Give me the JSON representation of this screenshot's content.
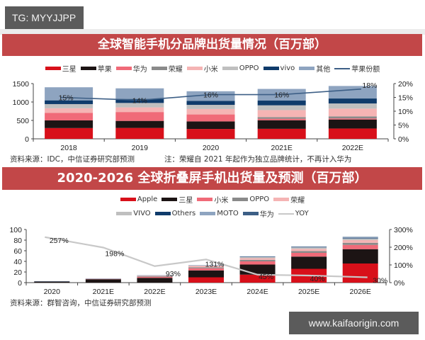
{
  "badge": {
    "text": "TG: MYYJJPP"
  },
  "watermark": {
    "text": "www.kaifaorigin.com"
  },
  "colors": {
    "banner": "#c24748",
    "samsung": "#d8101a",
    "apple": "#1c1414",
    "huawei": "#f06a78",
    "honor": "#8a8a8a",
    "xiaomi": "#f5b4b4",
    "oppo": "#bfbfbf",
    "vivo": "#0f3b6b",
    "others": "#8ea4c0",
    "share_line": "#3d5f86",
    "yoy_line": "#c8c8c8"
  },
  "chart_data": [
    {
      "type": "bar",
      "stacked": true,
      "title": "全球智能手机分品牌出货量情况（百万部）",
      "categories": [
        "2018",
        "2019",
        "2020",
        "2021E",
        "2022E"
      ],
      "ylabel": "百万部",
      "ylim": [
        0,
        1500
      ],
      "yticks": [
        0,
        500,
        1000,
        1500
      ],
      "y2lim": [
        0,
        20
      ],
      "y2ticks": [
        "0%",
        "5%",
        "10%",
        "15%",
        "20%"
      ],
      "series": [
        {
          "name": "三星",
          "color": "#d8101a",
          "values": [
            292,
            296,
            267,
            272,
            280
          ]
        },
        {
          "name": "苹果",
          "color": "#1c1414",
          "values": [
            209,
            191,
            206,
            233,
            245
          ]
        },
        {
          "name": "华为",
          "color": "#f06a78",
          "values": [
            206,
            241,
            189,
            40,
            30
          ]
        },
        {
          "name": "荣耀",
          "color": "#8a8a8a",
          "values": [
            0,
            0,
            0,
            45,
            55
          ]
        },
        {
          "name": "小米",
          "color": "#f5b4b4",
          "values": [
            123,
            126,
            148,
            190,
            210
          ]
        },
        {
          "name": "OPPO",
          "color": "#bfbfbf",
          "values": [
            113,
            120,
            112,
            130,
            140
          ]
        },
        {
          "name": "vivo",
          "color": "#0f3b6b",
          "values": [
            102,
            110,
            110,
            128,
            135
          ]
        },
        {
          "name": "其他",
          "color": "#8ea4c0",
          "values": [
            355,
            287,
            260,
            317,
            340
          ]
        }
      ],
      "line": {
        "name": "苹果份额",
        "axis": "right",
        "values": [
          15,
          14,
          16,
          16,
          18
        ],
        "labels": [
          "15%",
          "14%",
          "16%",
          "16%",
          "18%"
        ]
      },
      "legend": [
        "三星",
        "苹果",
        "华为",
        "荣耀",
        "小米",
        "OPPO",
        "vivo",
        "其他",
        "苹果份额"
      ],
      "source": "资料来源：IDC，中信证券研究部预测",
      "note": "注：荣耀自 2021 年起作为独立品牌统计，不再计入华为"
    },
    {
      "type": "bar",
      "stacked": true,
      "title": "2020-2026 全球折叠屏手机出货量及预测（百万部）",
      "categories": [
        "2020",
        "2021E",
        "2022E",
        "2023E",
        "2024E",
        "2025E",
        "2026E"
      ],
      "ylabel": "百万部",
      "ylim": [
        0,
        100
      ],
      "yticks": [
        0,
        20,
        40,
        60,
        80,
        100
      ],
      "y2lim": [
        0,
        300
      ],
      "y2ticks": [
        "0%",
        "100%",
        "200%",
        "300%"
      ],
      "series": [
        {
          "name": "Apple",
          "color": "#d8101a",
          "values": [
            0,
            0,
            0,
            10,
            15,
            26,
            36
          ]
        },
        {
          "name": "三星",
          "color": "#1c1414",
          "values": [
            2.5,
            6.5,
            9,
            13,
            19,
            23,
            27
          ]
        },
        {
          "name": "小米",
          "color": "#f06a78",
          "values": [
            0,
            0.5,
            2,
            4,
            6,
            7,
            8
          ]
        },
        {
          "name": "OPPO",
          "color": "#8a8a8a",
          "values": [
            0,
            0.2,
            1,
            2,
            3,
            3.5,
            4
          ]
        },
        {
          "name": "荣耀",
          "color": "#f5b4b4",
          "values": [
            0,
            0.2,
            1,
            2.5,
            3,
            4,
            5
          ]
        },
        {
          "name": "VIVO",
          "color": "#bfbfbf",
          "values": [
            0,
            0,
            0.5,
            1,
            2,
            2.5,
            3
          ]
        },
        {
          "name": "Others",
          "color": "#0f3b6b",
          "values": [
            0,
            0,
            0,
            0,
            0,
            0,
            0.5
          ]
        },
        {
          "name": "MOTO",
          "color": "#8ea4c0",
          "values": [
            0.3,
            0.5,
            0.5,
            0.5,
            1,
            1,
            1.5
          ]
        },
        {
          "name": "华为",
          "color": "#3d5f86",
          "values": [
            0,
            0,
            0,
            0,
            0.5,
            1,
            1
          ]
        }
      ],
      "line": {
        "name": "YOY",
        "axis": "right",
        "values": [
          257,
          198,
          93,
          131,
          45,
          40,
          30
        ],
        "labels": [
          "257%",
          "198%",
          "93%",
          "131%",
          "45%",
          "40%",
          "30%"
        ]
      },
      "legend": [
        "Apple",
        "三星",
        "小米",
        "OPPO",
        "荣耀",
        "VIVO",
        "Others",
        "MOTO",
        "华为",
        "YOY"
      ],
      "source": "资料来源：群智咨询，中信证券研究部预测"
    }
  ]
}
